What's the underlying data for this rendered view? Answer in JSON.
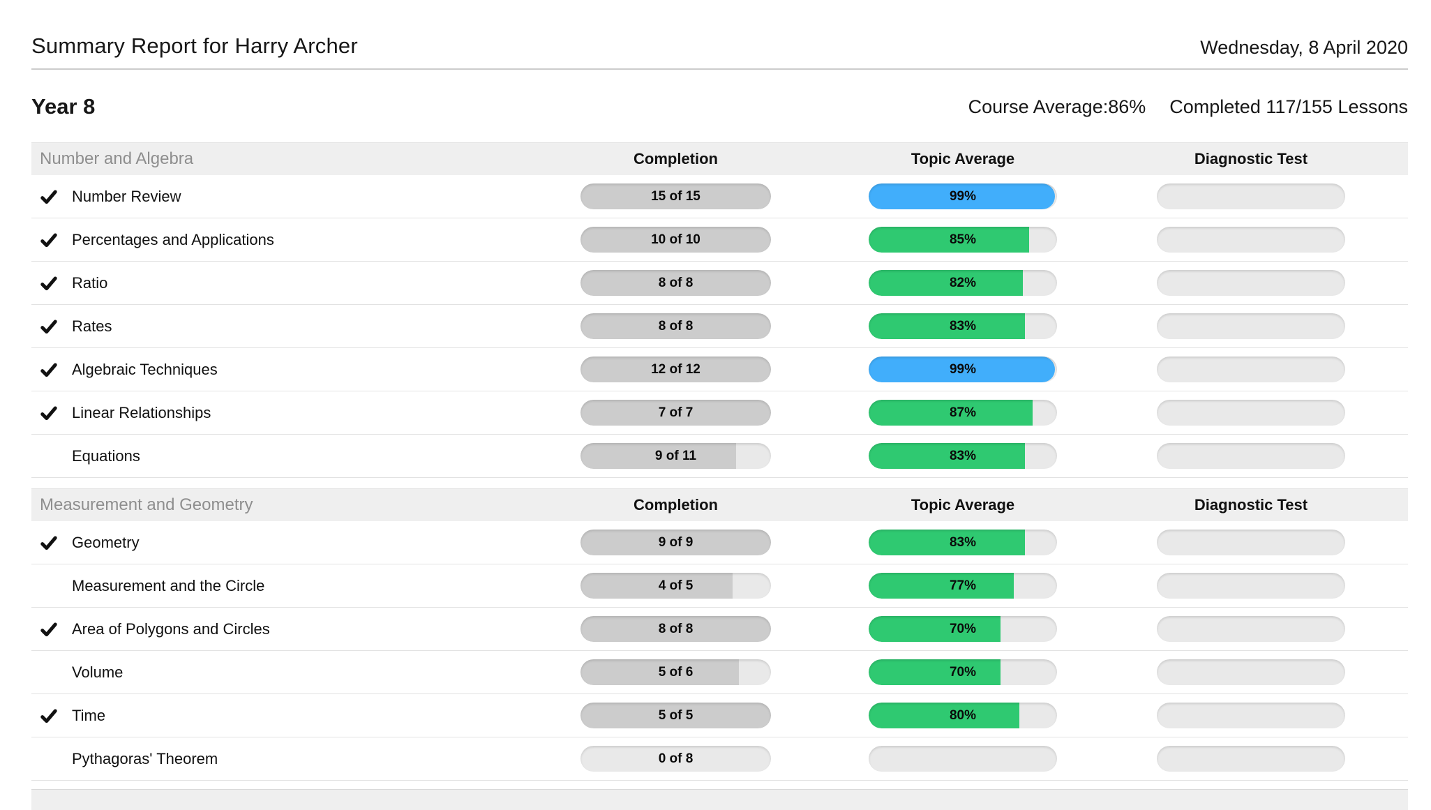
{
  "header": {
    "title": "Summary Report for Harry Archer",
    "date": "Wednesday, 8 April 2020"
  },
  "course": {
    "name": "Year 8",
    "average_label": "Course Average:",
    "average_value": "86%",
    "completed_text": "Completed 117/155 Lessons"
  },
  "columns": {
    "completion": "Completion",
    "topic_average": "Topic Average",
    "diagnostic_test": "Diagnostic Test"
  },
  "colors": {
    "blue": "#41aefb",
    "green": "#2fc971",
    "completion_fill": "#cccccc",
    "track": "#e9e9e9",
    "section_bg": "#efefef"
  },
  "sections": [
    {
      "name": "Number and Algebra",
      "rows": [
        {
          "completed": true,
          "label": "Number Review",
          "completion_text": "15 of 15",
          "completion_pct": 100,
          "average_text": "99%",
          "average_pct": 99,
          "average_color": "blue"
        },
        {
          "completed": true,
          "label": "Percentages and Applications",
          "completion_text": "10 of 10",
          "completion_pct": 100,
          "average_text": "85%",
          "average_pct": 85,
          "average_color": "green"
        },
        {
          "completed": true,
          "label": "Ratio",
          "completion_text": "8 of 8",
          "completion_pct": 100,
          "average_text": "82%",
          "average_pct": 82,
          "average_color": "green"
        },
        {
          "completed": true,
          "label": "Rates",
          "completion_text": "8 of 8",
          "completion_pct": 100,
          "average_text": "83%",
          "average_pct": 83,
          "average_color": "green"
        },
        {
          "completed": true,
          "label": "Algebraic Techniques",
          "completion_text": "12 of 12",
          "completion_pct": 100,
          "average_text": "99%",
          "average_pct": 99,
          "average_color": "blue"
        },
        {
          "completed": true,
          "label": "Linear Relationships",
          "completion_text": "7 of 7",
          "completion_pct": 100,
          "average_text": "87%",
          "average_pct": 87,
          "average_color": "green"
        },
        {
          "completed": false,
          "label": "Equations",
          "completion_text": "9 of 11",
          "completion_pct": 81.8,
          "average_text": "83%",
          "average_pct": 83,
          "average_color": "green"
        }
      ]
    },
    {
      "name": "Measurement and Geometry",
      "rows": [
        {
          "completed": true,
          "label": "Geometry",
          "completion_text": "9 of 9",
          "completion_pct": 100,
          "average_text": "83%",
          "average_pct": 83,
          "average_color": "green"
        },
        {
          "completed": false,
          "label": "Measurement and the Circle",
          "completion_text": "4 of 5",
          "completion_pct": 80,
          "average_text": "77%",
          "average_pct": 77,
          "average_color": "green"
        },
        {
          "completed": true,
          "label": "Area of Polygons and Circles",
          "completion_text": "8 of 8",
          "completion_pct": 100,
          "average_text": "70%",
          "average_pct": 70,
          "average_color": "green"
        },
        {
          "completed": false,
          "label": "Volume",
          "completion_text": "5 of 6",
          "completion_pct": 83.3,
          "average_text": "70%",
          "average_pct": 70,
          "average_color": "green"
        },
        {
          "completed": true,
          "label": "Time",
          "completion_text": "5 of 5",
          "completion_pct": 100,
          "average_text": "80%",
          "average_pct": 80,
          "average_color": "green"
        },
        {
          "completed": false,
          "label": "Pythagoras' Theorem",
          "completion_text": "0 of 8",
          "completion_pct": 0,
          "average_text": "",
          "average_pct": null,
          "average_color": null
        }
      ]
    }
  ]
}
